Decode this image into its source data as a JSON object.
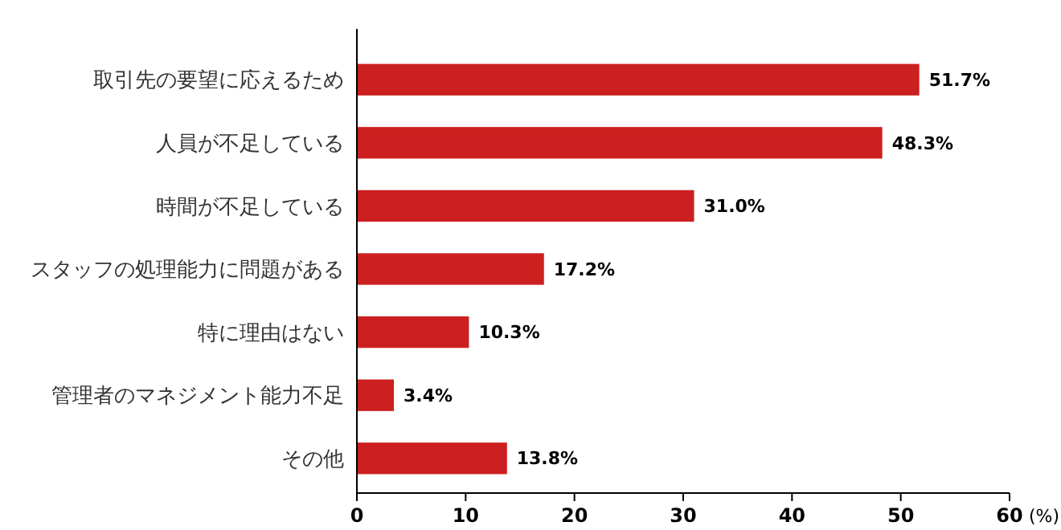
{
  "chart_data": {
    "type": "bar",
    "orientation": "horizontal",
    "xlabel": "(%)",
    "categories": [
      "取引先の要望に応えるため",
      "人員が不足している",
      "時間が不足している",
      "スタッフの処理能力に問題がある",
      "特に理由はない",
      "管理者のマネジメント能力不足",
      "その他"
    ],
    "values": [
      51.7,
      48.3,
      31.0,
      17.2,
      10.3,
      3.4,
      13.8
    ],
    "value_labels": [
      "51.7%",
      "48.3%",
      "31.0%",
      "17.2%",
      "10.3%",
      "3.4%",
      "13.8%"
    ],
    "color": "#cc1f1f",
    "xlim": [
      0,
      60
    ],
    "xticks": [
      0,
      10,
      20,
      30,
      40,
      50,
      60
    ],
    "grid": false
  }
}
